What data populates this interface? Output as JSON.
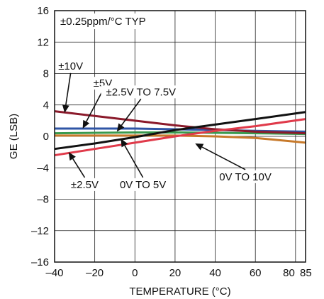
{
  "chart_data": {
    "type": "line",
    "title": "",
    "xlabel": "TEMPERATURE (°C)",
    "ylabel": "GE (LSB)",
    "xlim": [
      -40,
      85
    ],
    "ylim": [
      -16,
      16
    ],
    "grid": true,
    "x_ticks": [
      -40,
      -20,
      0,
      20,
      40,
      60,
      80,
      85
    ],
    "x_tick_labels": [
      "–40",
      "–20",
      "0",
      "20",
      "40",
      "60",
      "80",
      "85"
    ],
    "y_ticks": [
      -16,
      -12,
      -8,
      -4,
      0,
      4,
      8,
      12,
      16
    ],
    "y_tick_labels": [
      "–16",
      "–12",
      "–8",
      "–4",
      "0",
      "4",
      "8",
      "12",
      "16"
    ],
    "spec_text": "±0.25ppm/°C TYP",
    "series": [
      {
        "name": "±10V",
        "color": "#8b1a2b",
        "x": [
          -40,
          -20,
          0,
          20,
          40,
          60,
          85
        ],
        "y": [
          3.2,
          2.6,
          2.0,
          1.4,
          0.9,
          0.6,
          0.4
        ]
      },
      {
        "name": "±5V",
        "color": "#2f55a6",
        "x": [
          -40,
          -20,
          0,
          20,
          40,
          60,
          85
        ],
        "y": [
          1.0,
          1.0,
          1.0,
          0.9,
          0.8,
          0.7,
          0.6
        ]
      },
      {
        "name": "±2.5V TO 7.5V",
        "color": "#3a9a4e",
        "x": [
          -40,
          -20,
          0,
          20,
          40,
          60,
          85
        ],
        "y": [
          0.4,
          0.45,
          0.5,
          0.5,
          0.45,
          0.4,
          0.3
        ]
      },
      {
        "name": "±2.5V",
        "color": "#e03a4a",
        "x": [
          -40,
          -20,
          0,
          20,
          40,
          60,
          85
        ],
        "y": [
          -2.4,
          -1.6,
          -0.8,
          0.0,
          0.7,
          1.3,
          2.2
        ]
      },
      {
        "name": "0V TO 5V",
        "color": "#111111",
        "x": [
          -40,
          -20,
          0,
          20,
          40,
          60,
          85
        ],
        "y": [
          -1.6,
          -0.9,
          -0.1,
          0.8,
          1.5,
          2.2,
          3.1
        ]
      },
      {
        "name": "0V TO 10V",
        "color": "#c7792a",
        "x": [
          -40,
          -20,
          0,
          20,
          40,
          60,
          85
        ],
        "y": [
          0.1,
          0.1,
          0.1,
          0.1,
          0.0,
          -0.2,
          -0.8
        ]
      }
    ],
    "annotations": [
      {
        "text": "±10V",
        "tx": -32,
        "ty": 8.6,
        "px": -35,
        "py": 3.0
      },
      {
        "text": "±5V",
        "tx": -16,
        "ty": 6.4,
        "px": -26,
        "py": 1.0
      },
      {
        "text": "±2.5V TO 7.5V",
        "tx": 3,
        "ty": 5.3,
        "px": -9,
        "py": 0.6
      },
      {
        "text": "±2.5V",
        "tx": -25,
        "ty": -6.5,
        "px": -33,
        "py": -2.0
      },
      {
        "text": "0V TO 5V",
        "tx": 4,
        "ty": -6.5,
        "px": -7,
        "py": -0.3
      },
      {
        "text": "0V TO 10V",
        "tx": 55,
        "ty": -5.5,
        "px": 30,
        "py": -0.9
      }
    ]
  }
}
